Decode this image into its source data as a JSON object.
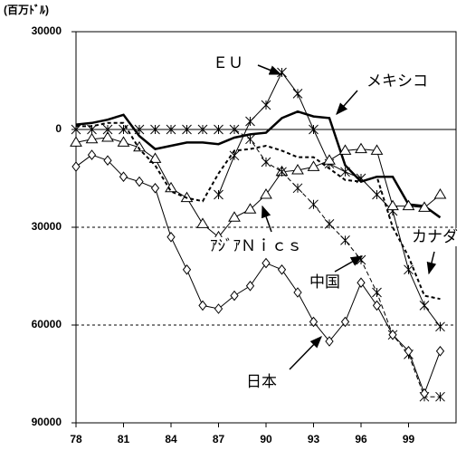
{
  "chart_data": {
    "type": "line",
    "y_axis_label": "(百万ﾄﾞﾙ)",
    "x": [
      78,
      79,
      80,
      81,
      82,
      83,
      84,
      85,
      86,
      87,
      88,
      89,
      90,
      91,
      92,
      93,
      94,
      95,
      96,
      97,
      98,
      99,
      100,
      101
    ],
    "xlim": [
      78,
      102
    ],
    "xticks": [
      78,
      81,
      84,
      87,
      90,
      93,
      96,
      99
    ],
    "ylim": [
      -90000,
      30000
    ],
    "yticks": [
      30000,
      0,
      {
        "value": -30000,
        "label": "30000"
      },
      {
        "value": -60000,
        "label": "60000"
      },
      {
        "value": -90000,
        "label": "90000"
      }
    ],
    "grid": true,
    "series": [
      {
        "name": "ＥＵ",
        "color": "#000000",
        "marker": "x",
        "dash": "none",
        "width": 1,
        "values": [
          null,
          null,
          null,
          null,
          null,
          null,
          null,
          null,
          null,
          -20000,
          -8000,
          2500,
          7500,
          17500,
          11000,
          0,
          -10500,
          -13000,
          -15000,
          -20000,
          -25000,
          -43000,
          -54000,
          -60500
        ]
      },
      {
        "name": "メキシコ",
        "color": "#000000",
        "marker": "none",
        "dash": "none",
        "width": 2.5,
        "values": [
          1500,
          2000,
          3000,
          4500,
          -2000,
          -6000,
          -5000,
          -4000,
          -4000,
          -4500,
          -2500,
          -1500,
          -1000,
          3500,
          5500,
          4000,
          3500,
          -11000,
          -16000,
          -14500,
          -14500,
          -23000,
          -23500,
          -27000
        ]
      },
      {
        "name": "ｱｼﾞｱＮｉｃｓ",
        "color": "#000000",
        "marker": "triangle",
        "dash": "none",
        "width": 1,
        "values": [
          -4000,
          -3000,
          -2500,
          -4000,
          -5500,
          -9000,
          -18000,
          -21000,
          -29000,
          -33000,
          -27000,
          -24500,
          -20000,
          -13000,
          -12500,
          -11500,
          -9500,
          -6500,
          -6000,
          -6500,
          -23500,
          -23500,
          -24000,
          -20000
        ]
      },
      {
        "name": "中国",
        "color": "#000000",
        "marker": "x",
        "dash": "5,3",
        "width": 1,
        "values": [
          0,
          0,
          0,
          0,
          0,
          0,
          0,
          0,
          0,
          0,
          0,
          -3000,
          -10000,
          -13000,
          -18000,
          -23000,
          -29000,
          -34000,
          -40000,
          -50000,
          -63000,
          -69000,
          -82000,
          -82000
        ]
      },
      {
        "name": "カナダ",
        "color": "#000000",
        "marker": "none",
        "dash": "4,3",
        "width": 2,
        "values": [
          1000,
          1000,
          2000,
          2000,
          -6000,
          -11000,
          -19000,
          -21000,
          -22000,
          -13500,
          -6500,
          -6000,
          -5000,
          -6500,
          -8500,
          -8500,
          -12000,
          -15500,
          -16000,
          -14500,
          -30000,
          -39000,
          -51000,
          -52000
        ]
      },
      {
        "name": "日本",
        "color": "#000000",
        "marker": "diamond",
        "dash": "none",
        "width": 1,
        "values": [
          -11400,
          -7800,
          -9500,
          -14500,
          -16000,
          -18000,
          -33000,
          -43000,
          -54000,
          -55000,
          -51000,
          -48000,
          -41000,
          -43000,
          -50000,
          -59000,
          -65000,
          -59000,
          -47000,
          -54000,
          -63000,
          -68000,
          -81000,
          -68000
        ]
      }
    ]
  }
}
